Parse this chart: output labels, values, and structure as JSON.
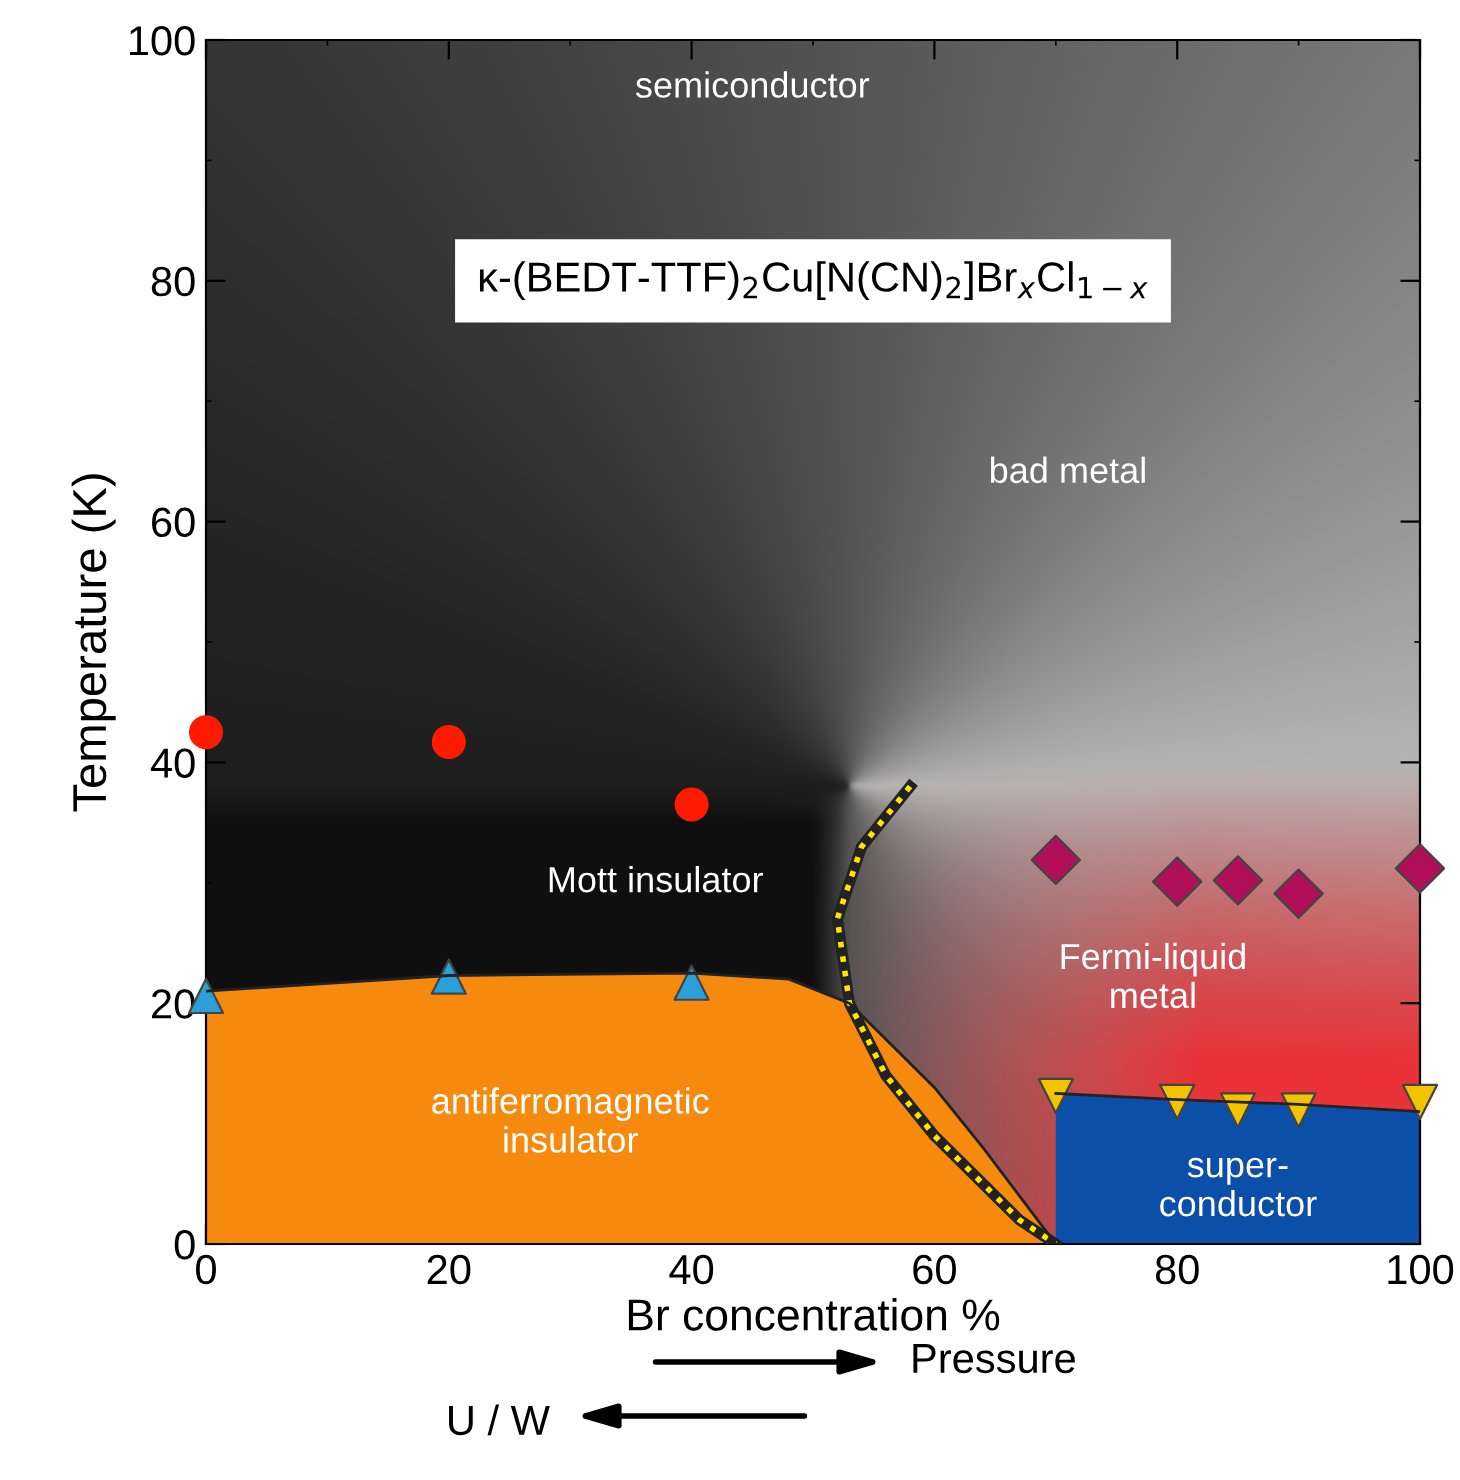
{
  "chart_data": {
    "type": "scatter",
    "title": "κ-(BEDT-TTF)$_{2}$Cu[N(CN)$_{2}$]Br$_{x}$Cl$_{1−x}$",
    "xlabel": "Br concentration %",
    "ylabel": "Temperature (K)",
    "xlim": [
      0,
      100
    ],
    "xticks": [
      0,
      20,
      40,
      60,
      80,
      100
    ],
    "ylim": [
      0,
      100
    ],
    "yticks": [
      0,
      20,
      40,
      60,
      80,
      100
    ],
    "grid": false,
    "legend": false,
    "annotations": [
      "semiconductor",
      "bad metal",
      "Mott insulator",
      "Fermi-liquid\nmetal",
      "Pressure",
      "U / W"
    ],
    "series": [
      {
        "name": "antiferromagnetic\ninsulator",
        "type": "area",
        "color": "#f58a0f",
        "x": [
          0,
          20,
          40,
          48,
          53,
          56,
          60,
          64,
          67,
          70
        ],
        "values": [
          21,
          22.3,
          22.5,
          22,
          20,
          17,
          13,
          8,
          4,
          0
        ]
      },
      {
        "name": "super-\nconductor",
        "type": "area",
        "color": "#0c4fa8",
        "x": [
          70,
          80,
          90,
          100
        ],
        "values": [
          12.5,
          12,
          11.6,
          11
        ]
      },
      {
        "type": "line",
        "color": "#ffe600",
        "line_style": "dotted",
        "marker": "none",
        "x": [
          58,
          54,
          52,
          53,
          56,
          60,
          64,
          67,
          70
        ],
        "values": [
          38,
          33,
          27,
          20,
          14,
          9,
          5,
          2,
          0
        ]
      },
      {
        "color": "#ff1a00",
        "marker": "circle",
        "x": [
          0,
          20,
          40
        ],
        "values": [
          42.5,
          41.7,
          36.5
        ]
      },
      {
        "color": "#2a9fd8",
        "marker": "triangle",
        "x": [
          0,
          20,
          40
        ],
        "values": [
          20.6,
          22.2,
          21.7
        ]
      },
      {
        "color": "#b0105a",
        "marker": "diamond",
        "x": [
          70,
          80,
          85,
          90,
          100
        ],
        "values": [
          31.9,
          30.1,
          30.2,
          29.1,
          31.2
        ]
      },
      {
        "color": "#f2c400",
        "marker": "triangle_down",
        "x": [
          70,
          80,
          85,
          90,
          100
        ],
        "values": [
          12.3,
          11.8,
          11.1,
          11.1,
          11.8
        ]
      }
    ]
  }
}
